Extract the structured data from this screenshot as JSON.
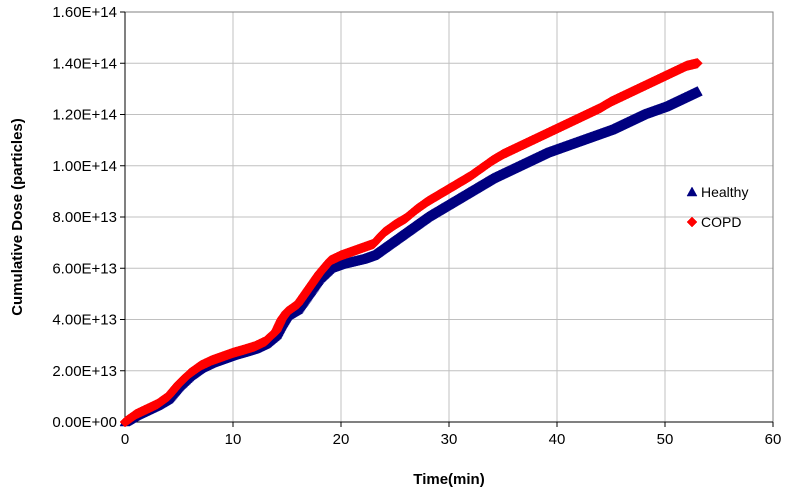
{
  "chart_data": {
    "type": "scatter",
    "xlabel": "Time(min)",
    "ylabel": "Cumulative Dose (particles)",
    "xlim": [
      0,
      60
    ],
    "ylim": [
      0,
      160000000000000.0
    ],
    "x_ticks": [
      0,
      10,
      20,
      30,
      40,
      50,
      60
    ],
    "x_tick_labels": [
      "0",
      "10",
      "20",
      "30",
      "40",
      "50",
      "60"
    ],
    "y_ticks": [
      0,
      20000000000000.0,
      40000000000000.0,
      60000000000000.0,
      80000000000000.0,
      100000000000000.0,
      120000000000000.0,
      140000000000000.0,
      160000000000000.0
    ],
    "y_tick_labels": [
      "0.00E+00",
      "2.00E+13",
      "4.00E+13",
      "6.00E+13",
      "8.00E+13",
      "1.00E+14",
      "1.20E+14",
      "1.40E+14",
      "1.60E+14"
    ],
    "grid": true,
    "legend_position": "right",
    "series": [
      {
        "name": "Healthy",
        "color": "#000080",
        "marker": "triangle",
        "x": [
          0,
          1,
          2,
          3,
          4,
          5,
          6,
          7,
          8,
          9,
          10,
          11,
          12,
          13,
          14,
          14.5,
          15,
          16,
          17,
          18,
          19,
          20,
          21,
          22,
          23,
          24,
          25,
          26,
          27,
          28,
          29,
          30,
          31,
          32,
          33,
          34,
          35,
          36,
          37,
          38,
          39,
          40,
          41,
          42,
          43,
          44,
          45,
          46,
          47,
          48,
          49,
          50,
          51,
          52,
          53
        ],
        "y": [
          0,
          2500000000000.0,
          4500000000000.0,
          6500000000000.0,
          9000000000000.0,
          14000000000000.0,
          18000000000000.0,
          21000000000000.0,
          23000000000000.0,
          24500000000000.0,
          26000000000000.0,
          27200000000000.0,
          28500000000000.0,
          30500000000000.0,
          34000000000000.0,
          38000000000000.0,
          41500000000000.0,
          44000000000000.0,
          50000000000000.0,
          56000000000000.0,
          60000000000000.0,
          61500000000000.0,
          62500000000000.0,
          63500000000000.0,
          65000000000000.0,
          68000000000000.0,
          71000000000000.0,
          74000000000000.0,
          77000000000000.0,
          80000000000000.0,
          82500000000000.0,
          85000000000000.0,
          87500000000000.0,
          90000000000000.0,
          92500000000000.0,
          95000000000000.0,
          97000000000000.0,
          99000000000000.0,
          101000000000000.0,
          103000000000000.0,
          105000000000000.0,
          106500000000000.0,
          108000000000000.0,
          109500000000000.0,
          111000000000000.0,
          112500000000000.0,
          114000000000000.0,
          116000000000000.0,
          118000000000000.0,
          120000000000000.0,
          121500000000000.0,
          123000000000000.0,
          125000000000000.0,
          127000000000000.0,
          129000000000000.0
        ]
      },
      {
        "name": "COPD",
        "color": "#ff0000",
        "marker": "diamond",
        "x": [
          0,
          1,
          2,
          3,
          4,
          5,
          6,
          7,
          8,
          9,
          10,
          11,
          12,
          13,
          14,
          14.5,
          15,
          16,
          17,
          18,
          19,
          20,
          21,
          22,
          23,
          24,
          25,
          26,
          27,
          28,
          29,
          30,
          31,
          32,
          33,
          34,
          35,
          36,
          37,
          38,
          39,
          40,
          41,
          42,
          43,
          44,
          45,
          46,
          47,
          48,
          49,
          50,
          51,
          52,
          53
        ],
        "y": [
          0,
          3000000000000.0,
          5000000000000.0,
          7000000000000.0,
          10000000000000.0,
          15000000000000.0,
          19000000000000.0,
          22000000000000.0,
          24000000000000.0,
          25500000000000.0,
          27000000000000.0,
          28200000000000.0,
          29500000000000.0,
          31500000000000.0,
          35500000000000.0,
          40000000000000.0,
          43000000000000.0,
          46000000000000.0,
          52000000000000.0,
          58000000000000.0,
          63000000000000.0,
          65000000000000.0,
          66500000000000.0,
          68000000000000.0,
          69500000000000.0,
          74000000000000.0,
          77000000000000.0,
          79500000000000.0,
          83000000000000.0,
          86000000000000.0,
          88500000000000.0,
          91000000000000.0,
          93500000000000.0,
          96000000000000.0,
          99000000000000.0,
          102000000000000.0,
          104500000000000.0,
          106500000000000.0,
          108500000000000.0,
          110500000000000.0,
          112500000000000.0,
          114500000000000.0,
          116500000000000.0,
          118500000000000.0,
          120500000000000.0,
          122500000000000.0,
          125000000000000.0,
          127000000000000.0,
          129000000000000.0,
          131000000000000.0,
          133000000000000.0,
          135000000000000.0,
          137000000000000.0,
          139000000000000.0,
          140000000000000.0
        ]
      }
    ]
  }
}
